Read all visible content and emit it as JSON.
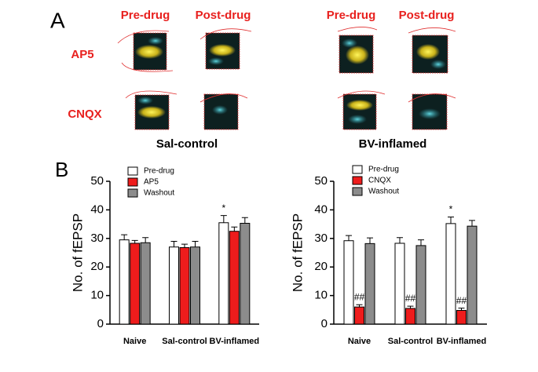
{
  "panel_a": {
    "label": "A",
    "left_columns": [
      "Pre-drug",
      "Post-drug"
    ],
    "right_columns": [
      "Pre-drug",
      "Post-drug"
    ],
    "rows": [
      "AP5",
      "CNQX"
    ],
    "left_group": "Sal-control",
    "right_group": "BV-inflamed"
  },
  "panel_b": {
    "label": "B"
  },
  "chart_data": [
    {
      "type": "bar",
      "ylabel": "No. of fEPSP",
      "categories": [
        "Naive",
        "Sal-control",
        "BV-inflamed"
      ],
      "ylim": [
        0,
        50
      ],
      "yticks": [
        0,
        10,
        20,
        30,
        40,
        50
      ],
      "series": [
        {
          "name": "Pre-drug",
          "color": "#ffffff",
          "values": [
            29.5,
            27,
            35.5
          ],
          "errors": [
            1.8,
            2,
            2.5
          ],
          "annotations": [
            null,
            null,
            "*"
          ]
        },
        {
          "name": "AP5",
          "color": "#ee1c1c",
          "values": [
            28.3,
            26.8,
            32.5
          ],
          "errors": [
            1,
            1.2,
            1.5
          ]
        },
        {
          "name": "Washout",
          "color": "#8c8c8c",
          "values": [
            28.5,
            27,
            35.3
          ],
          "errors": [
            1.8,
            2,
            2
          ]
        }
      ]
    },
    {
      "type": "bar",
      "ylabel": "No. of fEPSP",
      "categories": [
        "Naive",
        "Sal-control",
        "BV-inflamed"
      ],
      "ylim": [
        0,
        50
      ],
      "yticks": [
        0,
        10,
        20,
        30,
        40,
        50
      ],
      "series": [
        {
          "name": "Pre-drug",
          "color": "#ffffff",
          "values": [
            29.2,
            28.3,
            35.2
          ],
          "errors": [
            1.8,
            2,
            2.3
          ],
          "annotations": [
            null,
            null,
            "*"
          ]
        },
        {
          "name": "CNQX",
          "color": "#ee1c1c",
          "values": [
            6,
            5.5,
            4.8
          ],
          "errors": [
            0.8,
            0.8,
            0.8
          ],
          "annotations": [
            "##",
            "##",
            "##"
          ]
        },
        {
          "name": "Washout",
          "color": "#8c8c8c",
          "values": [
            28.2,
            27.5,
            34.3
          ],
          "errors": [
            2,
            2,
            2
          ]
        }
      ]
    }
  ]
}
